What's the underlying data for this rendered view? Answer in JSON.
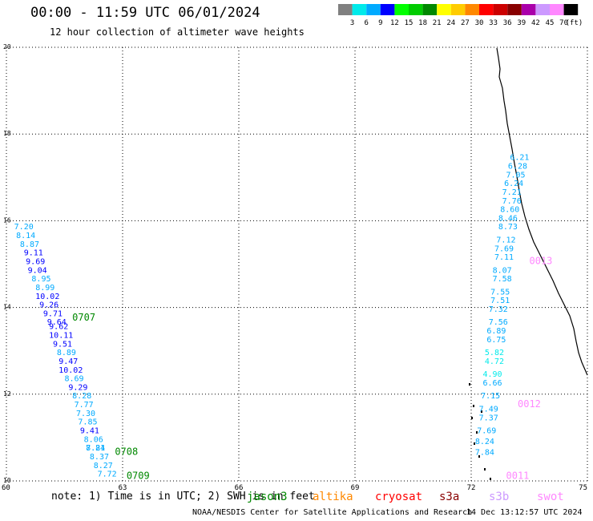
{
  "header": {
    "title": "00:00 - 11:59 UTC 06/01/2024",
    "subtitle": "12 hour collection of altimeter wave heights"
  },
  "legend": {
    "unit": "(ft)",
    "colors": [
      "#808080",
      "#00eaea",
      "#00aaff",
      "#0000ff",
      "#00ff00",
      "#00cc00",
      "#008800",
      "#ffff00",
      "#ffcc00",
      "#ff8800",
      "#ff0000",
      "#cc0000",
      "#880000",
      "#aa00aa",
      "#cc99ff",
      "#ff88ff",
      "#000000"
    ],
    "labels": [
      "3",
      "6",
      "9",
      "12",
      "15",
      "18",
      "21",
      "24",
      "27",
      "30",
      "33",
      "36",
      "39",
      "42",
      "45",
      "70"
    ]
  },
  "chart_data": {
    "type": "scatter",
    "title": "00:00 - 11:59 UTC 06/01/2024",
    "subtitle": "12 hour collection of altimeter wave heights",
    "xlim": [
      60,
      75
    ],
    "ylim": [
      10,
      20
    ],
    "x_ticks": [
      "60",
      "63",
      "66",
      "69",
      "72",
      "75"
    ],
    "y_ticks": [
      "10",
      "12",
      "14",
      "16",
      "18",
      "20"
    ],
    "grid": true,
    "passes": [
      {
        "name": "0707",
        "color": "#008800",
        "label_pos": [
          61.7,
          13.7
        ]
      },
      {
        "name": "0708",
        "color": "#008800",
        "label_pos": [
          62.8,
          10.6
        ]
      },
      {
        "name": "0709",
        "color": "#008800",
        "label_pos": [
          63.1,
          10.05
        ]
      },
      {
        "name": "0013",
        "color": "#ff88ff",
        "label_pos": [
          73.5,
          15.0
        ]
      },
      {
        "name": "0012",
        "color": "#ff88ff",
        "label_pos": [
          73.2,
          11.7
        ]
      },
      {
        "name": "0011",
        "color": "#ff88ff",
        "label_pos": [
          72.9,
          10.05
        ]
      }
    ],
    "west_track": [
      {
        "x": 60.2,
        "y": 15.8,
        "v": "7.20",
        "c": "#00aaff"
      },
      {
        "x": 60.25,
        "y": 15.6,
        "v": "8.14",
        "c": "#00aaff"
      },
      {
        "x": 60.35,
        "y": 15.4,
        "v": "8.87",
        "c": "#00aaff"
      },
      {
        "x": 60.45,
        "y": 15.2,
        "v": "9.11",
        "c": "#0000ff"
      },
      {
        "x": 60.5,
        "y": 15.0,
        "v": "9.69",
        "c": "#0000ff"
      },
      {
        "x": 60.55,
        "y": 14.8,
        "v": "9.04",
        "c": "#0000ff"
      },
      {
        "x": 60.65,
        "y": 14.6,
        "v": "8.95",
        "c": "#00aaff"
      },
      {
        "x": 60.75,
        "y": 14.4,
        "v": "8.99",
        "c": "#00aaff"
      },
      {
        "x": 60.75,
        "y": 14.2,
        "v": "10.02",
        "c": "#0000ff"
      },
      {
        "x": 60.85,
        "y": 14.0,
        "v": "9.26",
        "c": "#0000ff"
      },
      {
        "x": 60.95,
        "y": 13.8,
        "v": "9.71",
        "c": "#0000ff"
      },
      {
        "x": 61.05,
        "y": 13.6,
        "v": "9.64",
        "c": "#0000ff"
      },
      {
        "x": 61.1,
        "y": 13.5,
        "v": "9.62",
        "c": "#0000ff"
      },
      {
        "x": 61.1,
        "y": 13.3,
        "v": "10.11",
        "c": "#0000ff"
      },
      {
        "x": 61.2,
        "y": 13.1,
        "v": "9.51",
        "c": "#0000ff"
      },
      {
        "x": 61.3,
        "y": 12.9,
        "v": "8.89",
        "c": "#00aaff"
      },
      {
        "x": 61.35,
        "y": 12.7,
        "v": "9.47",
        "c": "#0000ff"
      },
      {
        "x": 61.35,
        "y": 12.5,
        "v": "10.02",
        "c": "#0000ff"
      },
      {
        "x": 61.5,
        "y": 12.3,
        "v": "8.69",
        "c": "#00aaff"
      },
      {
        "x": 61.6,
        "y": 12.1,
        "v": "9.29",
        "c": "#0000ff"
      },
      {
        "x": 61.7,
        "y": 11.9,
        "v": "8.28",
        "c": "#00aaff"
      },
      {
        "x": 61.75,
        "y": 11.7,
        "v": "7.77",
        "c": "#00aaff"
      },
      {
        "x": 61.8,
        "y": 11.5,
        "v": "7.30",
        "c": "#00aaff"
      },
      {
        "x": 61.85,
        "y": 11.3,
        "v": "7.85",
        "c": "#00aaff"
      },
      {
        "x": 61.9,
        "y": 11.1,
        "v": "9.41",
        "c": "#0000ff"
      },
      {
        "x": 62.0,
        "y": 10.9,
        "v": "8.06",
        "c": "#00aaff"
      },
      {
        "x": 62.05,
        "y": 10.7,
        "v": "7.84",
        "c": "#00aaff"
      },
      {
        "x": 62.05,
        "y": 10.7,
        "v": "8.21",
        "c": "#00aaff"
      },
      {
        "x": 62.15,
        "y": 10.5,
        "v": "8.37",
        "c": "#00aaff"
      },
      {
        "x": 62.25,
        "y": 10.3,
        "v": "8.27",
        "c": "#00aaff"
      },
      {
        "x": 62.35,
        "y": 10.1,
        "v": "7.72",
        "c": "#00aaff"
      }
    ],
    "east_track": [
      {
        "x": 73.0,
        "y": 17.4,
        "v": "6.21",
        "c": "#00aaff"
      },
      {
        "x": 72.95,
        "y": 17.2,
        "v": "6.28",
        "c": "#00aaff"
      },
      {
        "x": 72.9,
        "y": 17.0,
        "v": "7.05",
        "c": "#00aaff"
      },
      {
        "x": 72.85,
        "y": 16.8,
        "v": "6.24",
        "c": "#00aaff"
      },
      {
        "x": 72.8,
        "y": 16.6,
        "v": "7.21",
        "c": "#00aaff"
      },
      {
        "x": 72.8,
        "y": 16.4,
        "v": "7.76",
        "c": "#00aaff"
      },
      {
        "x": 72.75,
        "y": 16.2,
        "v": "8.60",
        "c": "#00aaff"
      },
      {
        "x": 72.7,
        "y": 16.0,
        "v": "8.46",
        "c": "#00aaff"
      },
      {
        "x": 72.7,
        "y": 15.8,
        "v": "8.73",
        "c": "#00aaff"
      },
      {
        "x": 72.65,
        "y": 15.5,
        "v": "7.12",
        "c": "#00aaff"
      },
      {
        "x": 72.6,
        "y": 15.3,
        "v": "7.69",
        "c": "#00aaff"
      },
      {
        "x": 72.6,
        "y": 15.1,
        "v": "7.11",
        "c": "#00aaff"
      },
      {
        "x": 72.55,
        "y": 14.8,
        "v": "8.07",
        "c": "#00aaff"
      },
      {
        "x": 72.55,
        "y": 14.6,
        "v": "7.58",
        "c": "#00aaff"
      },
      {
        "x": 72.5,
        "y": 14.3,
        "v": "7.55",
        "c": "#00aaff"
      },
      {
        "x": 72.5,
        "y": 14.1,
        "v": "7.51",
        "c": "#00aaff"
      },
      {
        "x": 72.45,
        "y": 13.9,
        "v": "7.32",
        "c": "#00aaff"
      },
      {
        "x": 72.45,
        "y": 13.6,
        "v": "7.56",
        "c": "#00aaff"
      },
      {
        "x": 72.4,
        "y": 13.4,
        "v": "6.89",
        "c": "#00aaff"
      },
      {
        "x": 72.4,
        "y": 13.2,
        "v": "6.75",
        "c": "#00aaff"
      },
      {
        "x": 72.35,
        "y": 12.9,
        "v": "5.82",
        "c": "#00eaea"
      },
      {
        "x": 72.35,
        "y": 12.7,
        "v": "4.72",
        "c": "#00eaea"
      },
      {
        "x": 72.3,
        "y": 12.4,
        "v": "4.90",
        "c": "#00eaea"
      },
      {
        "x": 72.3,
        "y": 12.2,
        "v": "6.66",
        "c": "#00aaff"
      },
      {
        "x": 72.25,
        "y": 11.9,
        "v": "7.15",
        "c": "#00aaff"
      },
      {
        "x": 72.2,
        "y": 11.6,
        "v": "7.49",
        "c": "#00aaff"
      },
      {
        "x": 72.2,
        "y": 11.4,
        "v": "7.37",
        "c": "#00aaff"
      },
      {
        "x": 72.15,
        "y": 11.1,
        "v": "7.69",
        "c": "#00aaff"
      },
      {
        "x": 72.1,
        "y": 10.85,
        "v": "8.24",
        "c": "#00aaff"
      },
      {
        "x": 72.1,
        "y": 10.6,
        "v": "7.84",
        "c": "#00aaff"
      }
    ]
  },
  "footer": {
    "note": "note: 1) Time is in UTC; 2) SWH is in feet",
    "satellites": [
      {
        "name": "jason3",
        "color": "#008800"
      },
      {
        "name": "altika",
        "color": "#ff8800"
      },
      {
        "name": "cryosat",
        "color": "#ff0000"
      },
      {
        "name": "s3a",
        "color": "#880000"
      },
      {
        "name": "s3b",
        "color": "#cc99ff"
      },
      {
        "name": "swot",
        "color": "#ff88ff"
      }
    ],
    "credit": "NOAA/NESDIS Center for Satellite Applications and Research",
    "timestamp": "14 Dec 13:12:57 UTC 2024"
  }
}
